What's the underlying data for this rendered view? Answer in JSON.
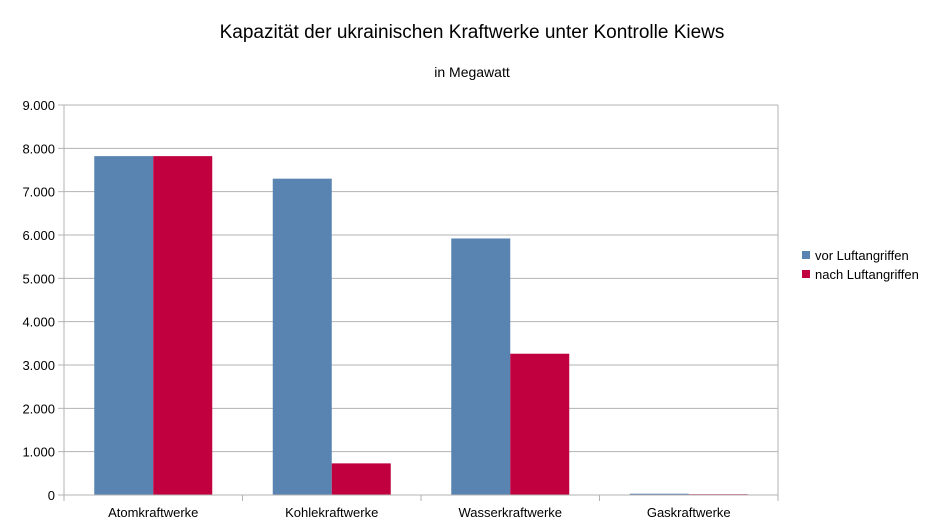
{
  "chart_data": {
    "type": "bar",
    "title": "Kapazität der ukrainischen Kraftwerke unter Kontrolle Kiews",
    "subtitle": "in Megawatt",
    "categories": [
      "Atomkraftwerke",
      "Kohlekraftwerke",
      "Wasserkraftwerke",
      "Gaskraftwerke"
    ],
    "series": [
      {
        "name": "vor Luftangriffen",
        "color": "#5983b0",
        "values": [
          7820,
          7300,
          5920,
          30
        ]
      },
      {
        "name": "nach Luftangriffen",
        "color": "#c0003f",
        "values": [
          7820,
          730,
          3260,
          15
        ]
      }
    ],
    "ylim": [
      0,
      9000
    ],
    "yticks": [
      "0",
      "1.000",
      "2.000",
      "3.000",
      "4.000",
      "5.000",
      "6.000",
      "7.000",
      "8.000",
      "9.000"
    ],
    "grid": true,
    "legend_position": "right"
  }
}
